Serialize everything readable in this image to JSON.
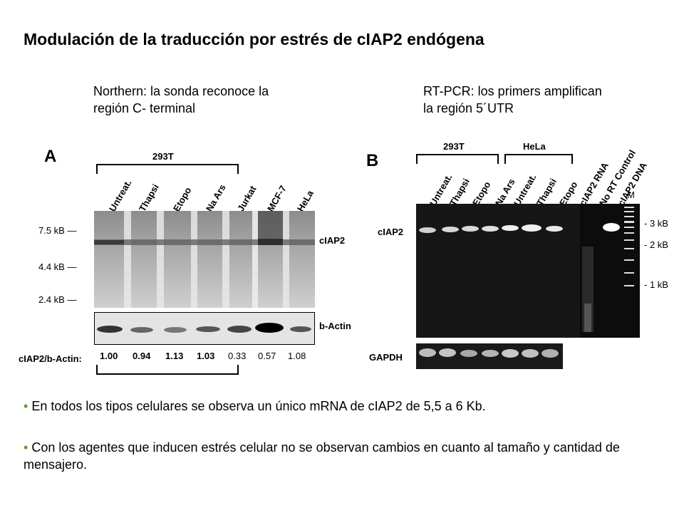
{
  "title": "Modulación de la traducción por estrés de cIAP2 endógena",
  "northern": {
    "caption": [
      "Northern: la sonda reconoce la",
      "región C- terminal"
    ],
    "letter": "A",
    "group_label": "293T",
    "lanes": [
      "Untreat.",
      "Thapsi",
      "Etopo",
      "Na Ars",
      "Jurkat",
      "MCF-7",
      "HeLa"
    ],
    "markers": [
      "7.5 kB —",
      "4.4 kB —",
      "2.4 kB —"
    ],
    "band_labels": [
      "cIAP2",
      "b-Actin"
    ],
    "ratio_label": "cIAP2/b-Actin:",
    "ratios": [
      "1.00",
      "0.94",
      "1.13",
      "1.03",
      "0.33",
      "0.57",
      "1.08"
    ]
  },
  "rtpcr": {
    "caption": [
      "RT-PCR: los primers amplifican",
      "la región 5´UTR"
    ],
    "letter": "B",
    "group_labels": [
      "293T",
      "HeLa"
    ],
    "lanes": [
      "Untreat.",
      "Thapsi",
      "Etopo",
      "Na Ars",
      "Untreat.",
      "Thapsi",
      "Etopo",
      "cIAP2 RNA",
      "No RT Control",
      "cIAP2 DNA",
      "M"
    ],
    "band_labels": [
      "cIAP2",
      "GAPDH"
    ],
    "markers": [
      "- 3 kB",
      "- 2 kB",
      "- 1 kB"
    ]
  },
  "bullets": [
    "En todos los tipos celulares se observa un único mRNA de cIAP2 de 5,5 a 6 Kb.",
    "Con los agentes que inducen estrés celular no se observan cambios en cuanto al tamaño y cantidad de mensajero."
  ]
}
